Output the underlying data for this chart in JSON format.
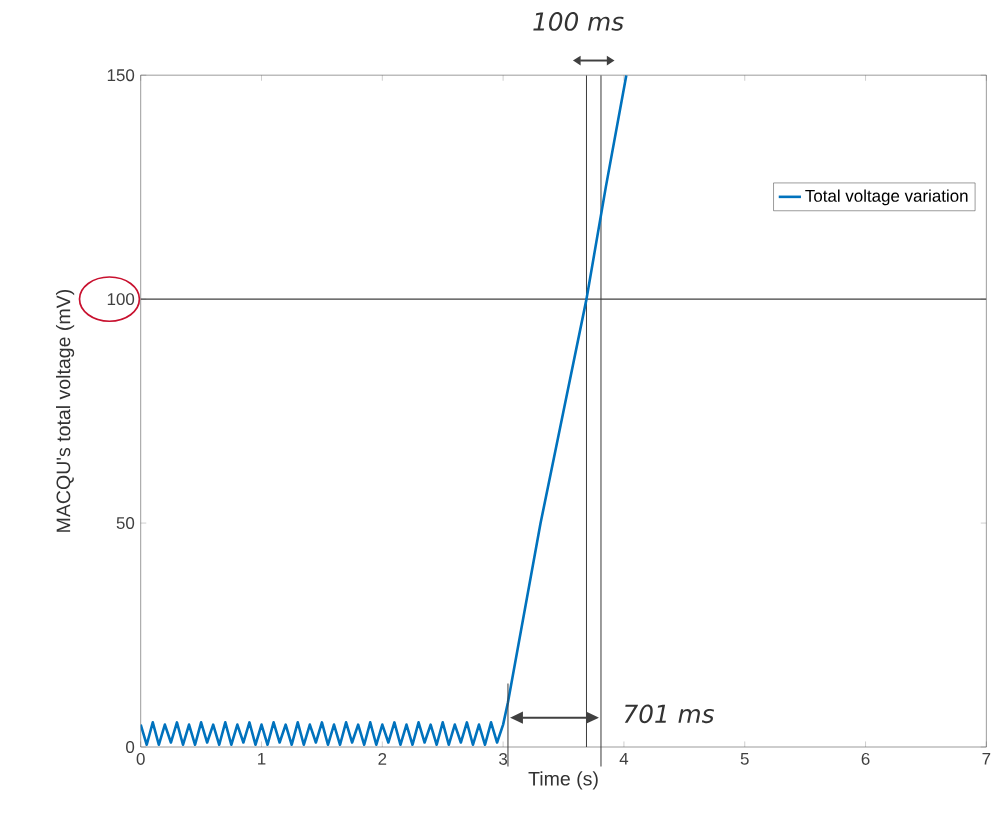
{
  "chart_data": {
    "type": "line",
    "xlabel": "Time (s)",
    "ylabel": "MACQU's total voltage (mV)",
    "series": [
      {
        "name": "Total voltage variation",
        "color": "#0072bd",
        "x": [
          0,
          0.05,
          0.1,
          0.15,
          0.2,
          0.25,
          0.3,
          0.35,
          0.4,
          0.45,
          0.5,
          0.55,
          0.6,
          0.65,
          0.7,
          0.75,
          0.8,
          0.85,
          0.9,
          0.95,
          1.0,
          1.05,
          1.1,
          1.15,
          1.2,
          1.25,
          1.3,
          1.35,
          1.4,
          1.45,
          1.5,
          1.55,
          1.6,
          1.65,
          1.7,
          1.75,
          1.8,
          1.85,
          1.9,
          1.95,
          2.0,
          2.05,
          2.1,
          2.15,
          2.2,
          2.25,
          2.3,
          2.35,
          2.4,
          2.45,
          2.5,
          2.55,
          2.6,
          2.65,
          2.7,
          2.75,
          2.8,
          2.85,
          2.9,
          2.95,
          3.0,
          3.04,
          3.31,
          3.5,
          3.69,
          3.85,
          4.02
        ],
        "values": [
          5,
          0.5,
          5.5,
          0.5,
          5,
          1,
          5.5,
          0.5,
          5,
          0.5,
          5.5,
          1,
          5,
          0.5,
          5.5,
          0.5,
          5,
          1,
          5.5,
          0.5,
          5,
          0.5,
          5.5,
          1,
          5,
          0.5,
          5.5,
          0.5,
          5,
          1,
          5.5,
          0.5,
          5,
          0.5,
          5.5,
          1,
          5,
          0.5,
          5.5,
          0.5,
          5,
          1,
          5.5,
          0.5,
          5,
          0.5,
          5.5,
          1,
          5,
          0.5,
          5.5,
          0.5,
          5,
          1,
          5.5,
          0.5,
          5,
          0.5,
          5.5,
          1,
          5,
          10,
          50,
          75,
          100,
          125,
          150
        ]
      }
    ],
    "xlim": [
      0,
      7
    ],
    "ylim": [
      0,
      150
    ],
    "xticks": [
      0,
      1,
      2,
      3,
      4,
      5,
      6,
      7
    ],
    "yticks": [
      0,
      50,
      100,
      150
    ],
    "ref_lines": [
      {
        "axis": "y",
        "value": 100,
        "color": "#404040"
      },
      {
        "axis": "x",
        "value": 3.69,
        "color": "#404040"
      },
      {
        "axis": "x",
        "value": 3.81,
        "color": "#404040"
      }
    ],
    "annotations": [
      "100 ms",
      "701 ms"
    ],
    "legend": "top right",
    "grid": false,
    "marker": "none",
    "line_style": "solid"
  }
}
